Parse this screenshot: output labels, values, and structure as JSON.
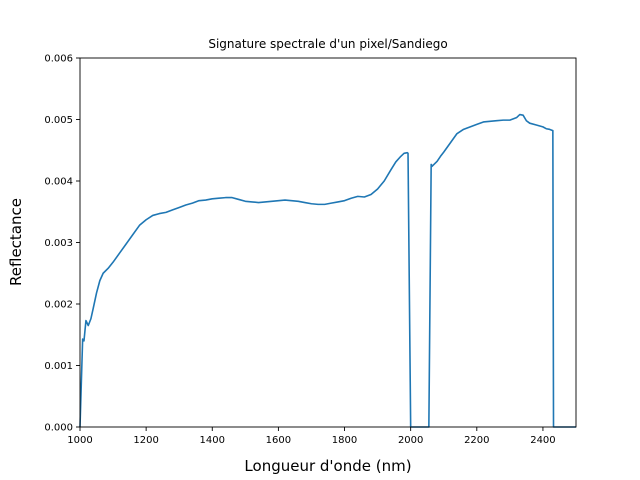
{
  "chart_data": {
    "type": "line",
    "title": "Signature spectrale d'un pixel/Sandiego",
    "xlabel": "Longueur d'onde (nm)",
    "ylabel": "Reflectance",
    "xlim": [
      1000,
      2500
    ],
    "ylim": [
      0,
      0.006
    ],
    "xticks": [
      1000,
      1200,
      1400,
      1600,
      1800,
      2000,
      2200,
      2400
    ],
    "xtick_labels": [
      "1000",
      "1200",
      "1400",
      "1600",
      "1800",
      "2000",
      "2200",
      "2400"
    ],
    "yticks": [
      0,
      0.001,
      0.002,
      0.003,
      0.004,
      0.005,
      0.006
    ],
    "ytick_labels": [
      "0.000",
      "0.001",
      "0.002",
      "0.003",
      "0.004",
      "0.005",
      "0.006"
    ],
    "grid": false,
    "legend": "none",
    "line_color": "#1f77b4",
    "series": [
      {
        "x": [
          1000,
          1008,
          1012,
          1018,
          1025,
          1033,
          1040,
          1050,
          1060,
          1070,
          1085,
          1100,
          1120,
          1140,
          1160,
          1180,
          1200,
          1220,
          1240,
          1260,
          1280,
          1300,
          1320,
          1340,
          1360,
          1380,
          1400,
          1420,
          1440,
          1460,
          1480,
          1500,
          1520,
          1540,
          1560,
          1580,
          1600,
          1620,
          1640,
          1660,
          1680,
          1700,
          1720,
          1740,
          1760,
          1780,
          1800,
          1820,
          1840,
          1860,
          1880,
          1900,
          1920,
          1940,
          1955,
          1970,
          1980,
          1990,
          1992,
          2000,
          2055,
          2062,
          2065,
          2080,
          2090,
          2100,
          2120,
          2140,
          2160,
          2180,
          2200,
          2220,
          2240,
          2260,
          2280,
          2300,
          2320,
          2330,
          2340,
          2350,
          2360,
          2380,
          2400,
          2410,
          2420,
          2425,
          2430,
          2432,
          2460,
          2490,
          2500
        ],
        "y": [
          0,
          0.00143,
          0.0014,
          0.00173,
          0.00165,
          0.00176,
          0.00193,
          0.00218,
          0.00238,
          0.0025,
          0.00258,
          0.00268,
          0.00283,
          0.00298,
          0.00313,
          0.00328,
          0.00337,
          0.00344,
          0.00347,
          0.00349,
          0.00353,
          0.00357,
          0.00361,
          0.00364,
          0.00368,
          0.00369,
          0.00371,
          0.00372,
          0.00373,
          0.00373,
          0.0037,
          0.00367,
          0.00366,
          0.00365,
          0.00366,
          0.00367,
          0.00368,
          0.00369,
          0.00368,
          0.00367,
          0.00365,
          0.00363,
          0.00362,
          0.00362,
          0.00364,
          0.00366,
          0.00368,
          0.00372,
          0.00375,
          0.00374,
          0.00378,
          0.00387,
          0.004,
          0.00418,
          0.00431,
          0.0044,
          0.00445,
          0.00446,
          0.00445,
          0,
          0,
          0.00427,
          0.00424,
          0.00432,
          0.0044,
          0.00447,
          0.00462,
          0.00477,
          0.00484,
          0.00488,
          0.00492,
          0.00496,
          0.00497,
          0.00498,
          0.00499,
          0.00499,
          0.00503,
          0.00508,
          0.00507,
          0.00498,
          0.00494,
          0.00491,
          0.00488,
          0.00485,
          0.00484,
          0.00483,
          0.00482,
          0,
          0,
          0,
          0
        ]
      }
    ]
  }
}
